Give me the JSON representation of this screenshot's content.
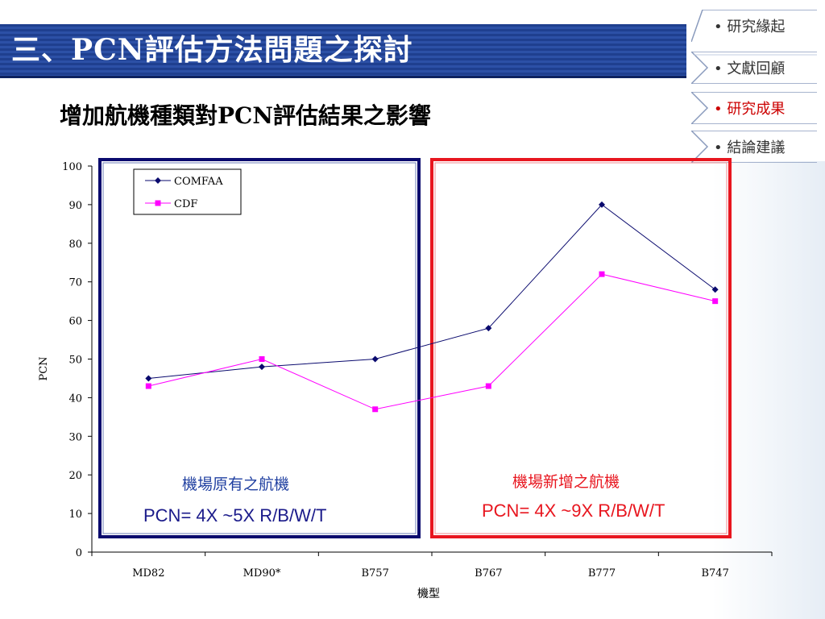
{
  "header": {
    "title": "三、PCN評估方法問題之探討",
    "subtitle": "增加航機種類對PCN評估結果之影響"
  },
  "nav": {
    "items": [
      {
        "label": "研究緣起",
        "active": false
      },
      {
        "label": "文獻回顧",
        "active": false
      },
      {
        "label": "研究成果",
        "active": true
      },
      {
        "label": "結論建議",
        "active": false
      }
    ]
  },
  "annotations": {
    "left_label": "機場原有之航機",
    "left_formula": "PCN= 4X ~5X R/B/W/T",
    "right_label": "機場新增之航機",
    "right_formula": "PCN= 4X ~9X R/B/W/T"
  },
  "colors": {
    "title_bar": "#1f3f8f",
    "left_box": "#0a0a6e",
    "right_box": "#e8161f",
    "comfaa": "#0a0a6e",
    "cdf": "#ff00ff",
    "nav_active": "#cc0000"
  },
  "chart_data": {
    "type": "line",
    "categories": [
      "MD82",
      "MD90*",
      "B757",
      "B767",
      "B777",
      "B747"
    ],
    "series": [
      {
        "name": "COMFAA",
        "values": [
          45,
          48,
          50,
          58,
          90,
          68
        ],
        "color": "#0a0a6e",
        "marker": "diamond"
      },
      {
        "name": "CDF",
        "values": [
          43,
          50,
          37,
          43,
          72,
          65
        ],
        "color": "#ff00ff",
        "marker": "square"
      }
    ],
    "xlabel": "機型",
    "ylabel": "PCN",
    "ylim": [
      0,
      100
    ],
    "yticks": [
      0,
      10,
      20,
      30,
      40,
      50,
      60,
      70,
      80,
      90,
      100
    ],
    "grid": false,
    "legend": "top-left"
  }
}
